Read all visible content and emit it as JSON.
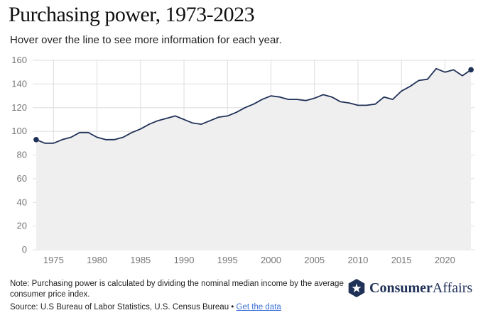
{
  "header": {
    "title": "Purchasing power, 1973-2023",
    "subtitle": "Hover over the line to see more information for each year."
  },
  "footer": {
    "note": "Note: Purchasing power is calculated by dividing the nominal median income by the average consumer price index.",
    "source_text": "Source: U.S Bureau of Labor Statistics, U.S. Census Bureau • ",
    "source_link": "Get the data"
  },
  "brand": {
    "name_bold": "Consumer",
    "name_regular": "Affairs",
    "icon": "star-shield-icon"
  },
  "colors": {
    "line": "#1f3157",
    "area": "#efefef",
    "grid": "#dddddd",
    "brand": "#1f3157",
    "link": "#3b6fd6"
  },
  "chart_data": {
    "type": "area",
    "title": "Purchasing power, 1973-2023",
    "xlabel": "",
    "ylabel": "",
    "xlim": [
      1972.6,
      2023.4
    ],
    "ylim": [
      0,
      160
    ],
    "x_ticks": [
      1975,
      1980,
      1985,
      1990,
      1995,
      2000,
      2005,
      2010,
      2015,
      2020
    ],
    "y_ticks": [
      0,
      20,
      40,
      60,
      80,
      100,
      120,
      140,
      160
    ],
    "grid": true,
    "series": [
      {
        "x": [
          1973,
          1974,
          1975,
          1976,
          1977,
          1978,
          1979,
          1980,
          1981,
          1982,
          1983,
          1984,
          1985,
          1986,
          1987,
          1988,
          1989,
          1990,
          1991,
          1992,
          1993,
          1994,
          1995,
          1996,
          1997,
          1998,
          1999,
          2000,
          2001,
          2002,
          2003,
          2004,
          2005,
          2006,
          2007,
          2008,
          2009,
          2010,
          2011,
          2012,
          2013,
          2014,
          2015,
          2016,
          2017,
          2018,
          2019,
          2020,
          2021,
          2022,
          2023
        ],
        "values": [
          93,
          90,
          90,
          93,
          95,
          99,
          99,
          95,
          93,
          93,
          95,
          99,
          102,
          106,
          109,
          111,
          113,
          110,
          107,
          106,
          109,
          112,
          113,
          116,
          120,
          123,
          127,
          130,
          129,
          127,
          127,
          126,
          128,
          131,
          129,
          125,
          124,
          122,
          122,
          123,
          129,
          127,
          134,
          138,
          143,
          144,
          153,
          150,
          152,
          147,
          152
        ]
      }
    ]
  }
}
